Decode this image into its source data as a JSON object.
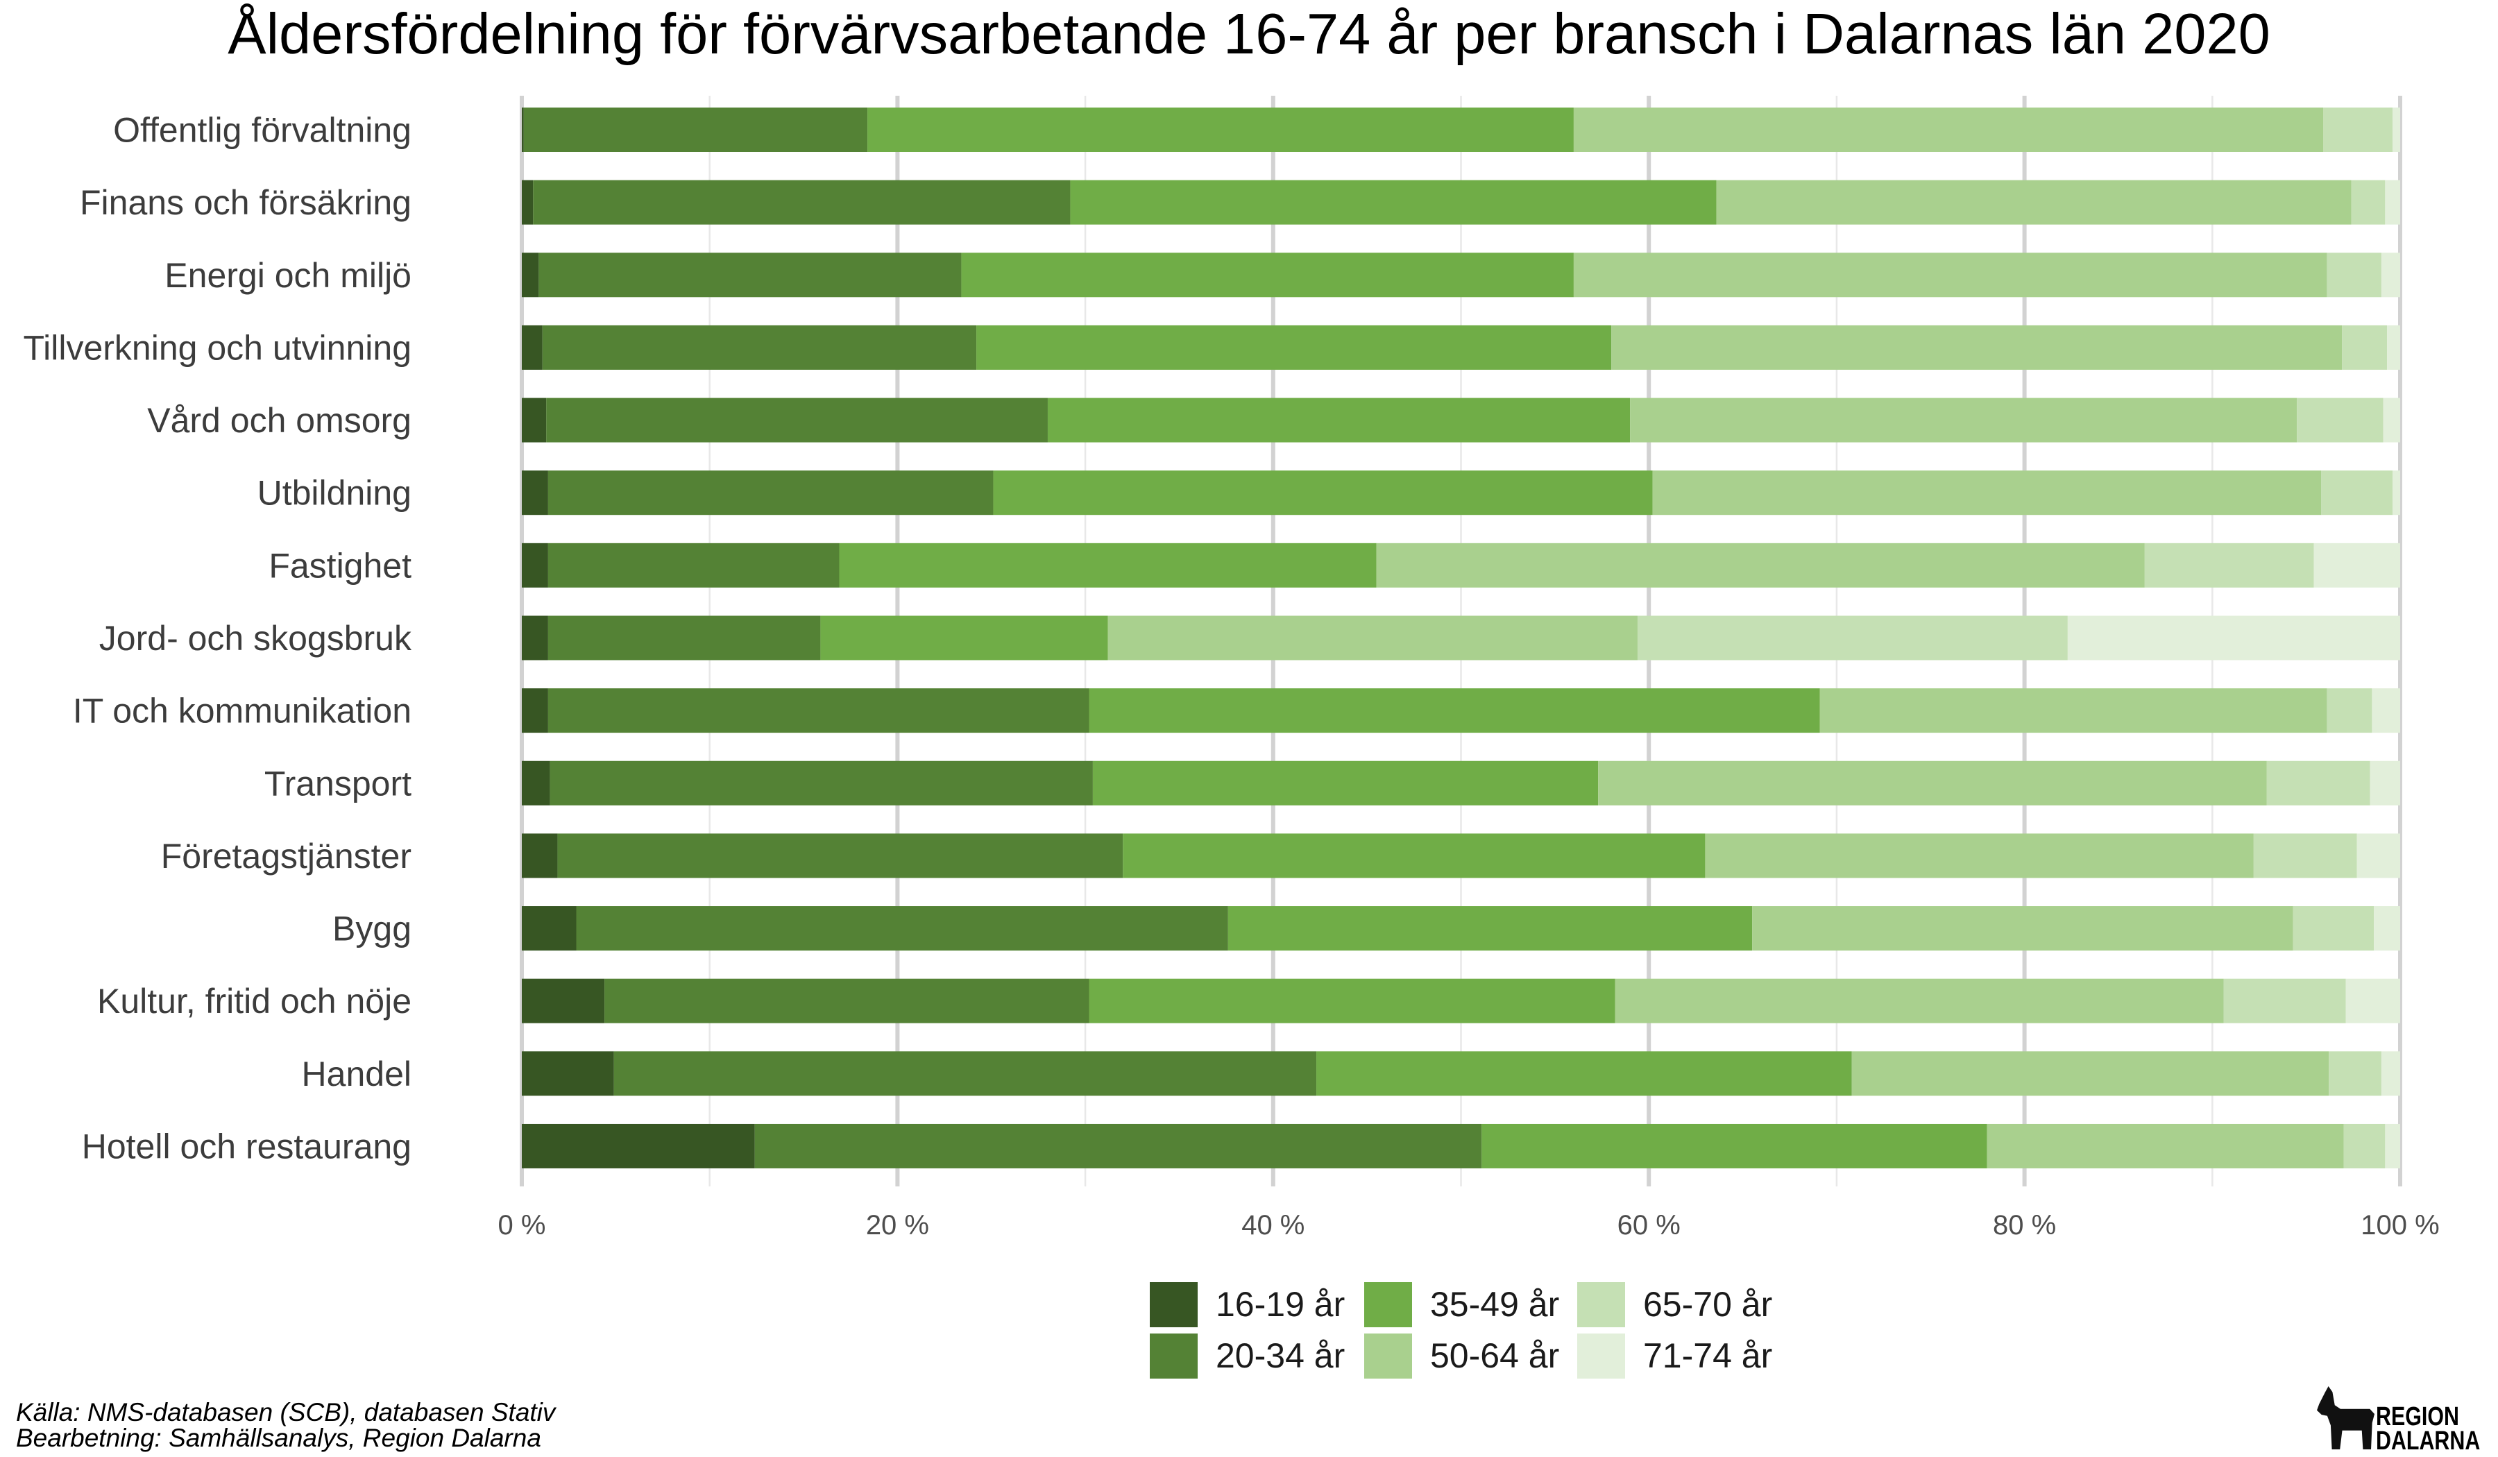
{
  "chart_data": {
    "type": "bar",
    "orientation": "horizontal",
    "stacked": true,
    "title": "Åldersfördelning för förvärvsarbetande 16-74 år per bransch i Dalarnas län 2020",
    "categories": [
      "Offentlig förvaltning",
      "Finans och försäkring",
      "Energi och miljö",
      "Tillverkning och utvinning",
      "Vård och omsorg",
      "Utbildning",
      "Fastighet",
      "Jord- och skogsbruk",
      "IT och kommunikation",
      "Transport",
      "Företagstjänster",
      "Bygg",
      "Kultur, fritid och nöje",
      "Handel",
      "Hotell och restaurang"
    ],
    "series": [
      {
        "name": "16-19 år",
        "color": "#375623",
        "values": [
          0.1,
          0.6,
          0.9,
          1.1,
          1.3,
          1.4,
          1.4,
          1.4,
          1.4,
          1.5,
          1.9,
          2.9,
          4.4,
          4.9,
          12.4
        ]
      },
      {
        "name": "20-34 år",
        "color": "#548235",
        "values": [
          18.3,
          28.6,
          22.5,
          23.1,
          26.7,
          23.7,
          15.5,
          14.5,
          28.8,
          28.9,
          30.1,
          34.7,
          25.8,
          37.4,
          38.7
        ]
      },
      {
        "name": "35-49 år",
        "color": "#70ad47",
        "values": [
          37.6,
          34.4,
          32.6,
          33.8,
          31.0,
          35.1,
          28.6,
          15.3,
          38.9,
          26.9,
          31.0,
          27.9,
          28.0,
          28.5,
          26.9
        ]
      },
      {
        "name": "50-64 år",
        "color": "#a9d08e",
        "values": [
          39.9,
          33.8,
          40.1,
          38.9,
          35.5,
          35.6,
          40.9,
          28.2,
          27.0,
          35.6,
          29.2,
          28.8,
          32.4,
          25.4,
          19.0
        ]
      },
      {
        "name": "65-70 år",
        "color": "#c5e0b4",
        "values": [
          3.7,
          1.8,
          2.9,
          2.4,
          4.6,
          3.8,
          9.0,
          22.9,
          2.4,
          5.5,
          5.5,
          4.3,
          6.5,
          2.8,
          2.2
        ]
      },
      {
        "name": "71-74 år",
        "color": "#e2efda",
        "values": [
          0.4,
          0.8,
          1.0,
          0.7,
          0.9,
          0.4,
          4.6,
          17.7,
          1.5,
          1.6,
          2.3,
          1.4,
          2.9,
          1.0,
          0.8
        ]
      }
    ],
    "xlim": [
      0,
      100
    ],
    "x_axis": {
      "tick_values": [
        0,
        20,
        40,
        60,
        80,
        100
      ],
      "tick_labels": [
        "0 %",
        "20 %",
        "40 %",
        "60 %",
        "80 %",
        "100 %"
      ]
    },
    "grid": true,
    "legend_position": "bottom"
  },
  "caption": {
    "source": "Källa: NMS-databasen (SCB), databasen Stativ",
    "processing": "Bearbetning: Samhällsanalys, Region Dalarna"
  },
  "logo": {
    "line1": "REGION",
    "line2": "DALARNA",
    "icon": "dala-horse-icon"
  }
}
